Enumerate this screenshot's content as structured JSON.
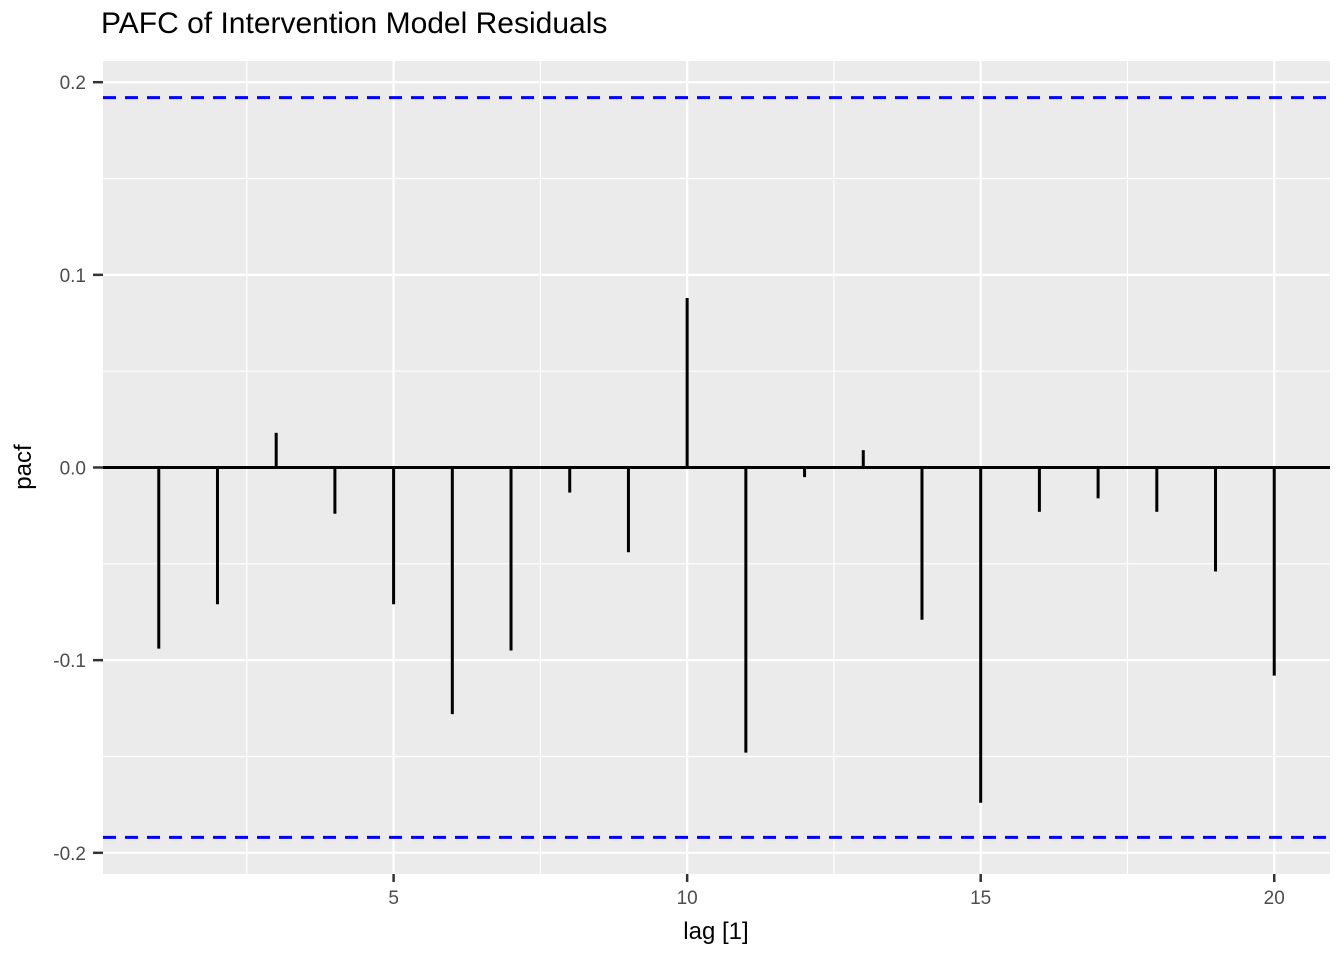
{
  "chart_data": {
    "type": "bar",
    "title": "PAFC of Intervention Model Residuals",
    "xlabel": "lag [1]",
    "ylabel": "pacf",
    "x": [
      1,
      2,
      3,
      4,
      5,
      6,
      7,
      8,
      9,
      10,
      11,
      12,
      13,
      14,
      15,
      16,
      17,
      18,
      19,
      20
    ],
    "values": [
      -0.094,
      -0.071,
      0.018,
      -0.024,
      -0.071,
      -0.128,
      -0.095,
      -0.013,
      -0.044,
      0.088,
      -0.148,
      -0.005,
      0.009,
      -0.079,
      -0.174,
      -0.023,
      -0.016,
      -0.023,
      -0.054,
      -0.108
    ],
    "conf_upper": 0.192,
    "conf_lower": -0.192,
    "xlim": [
      0.05,
      20.95
    ],
    "ylim": [
      -0.211,
      0.211
    ],
    "xticks": [
      {
        "v": 5,
        "l": "5"
      },
      {
        "v": 10,
        "l": "10"
      },
      {
        "v": 15,
        "l": "15"
      },
      {
        "v": 20,
        "l": "20"
      }
    ],
    "yticks": [
      {
        "v": 0.2,
        "l": "0.2"
      },
      {
        "v": 0.1,
        "l": "0.1"
      },
      {
        "v": 0.0,
        "l": "0.0"
      },
      {
        "v": -0.1,
        "l": "-0.1"
      },
      {
        "v": -0.2,
        "l": "-0.2"
      }
    ],
    "x_minor": [
      2.5,
      7.5,
      12.5,
      17.5
    ],
    "y_minor": [
      0.15,
      0.05,
      -0.05,
      -0.15
    ],
    "grid": true,
    "legend": "none",
    "colors": {
      "panel_bg": "#EBEBEB",
      "grid": "#FFFFFF",
      "bar": "#000000",
      "zero_line": "#000000",
      "ci_line": "#0000FF",
      "tick_text": "#4D4D4D",
      "tick_mark": "#333333",
      "title_text": "#000000"
    }
  }
}
